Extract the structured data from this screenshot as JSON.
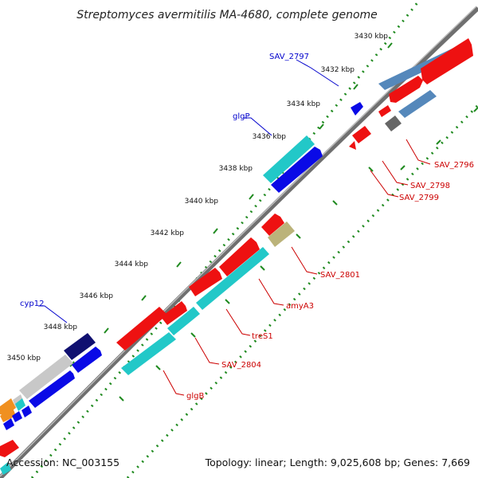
{
  "title": "Streptomyces avermitilis MA-4680, complete genome",
  "footer": {
    "accession": "Accession: NC_003155",
    "summary": "Topology: linear; Length: 9,025,608 bp; Genes: 7,669"
  },
  "colors": {
    "backbone": "#8c8c8c",
    "tick": "#1f8a1f",
    "blue_label": "#0000cc",
    "red_label": "#cc0000",
    "red_gene": "#ee1111",
    "cyan_gene": "#22c8c8",
    "blue_gene": "#0a0ae6",
    "navy_gene": "#101070",
    "steel_gene": "#5588bb",
    "gray_gene": "#777777",
    "tan_gene": "#bbb37a",
    "silver_gene": "#c8c8c8",
    "orange_gene": "#f09020"
  },
  "ticks": [
    "3430 kbp",
    "3432 kbp",
    "3434 kbp",
    "3436 kbp",
    "3438 kbp",
    "3440 kbp",
    "3442 kbp",
    "3444 kbp",
    "3446 kbp",
    "3448 kbp",
    "3450 kbp"
  ],
  "gene_labels": {
    "left": [
      "SAV_2797",
      "glgP",
      "cyp12"
    ],
    "right": [
      "SAV_2796",
      "SAV_2798",
      "SAV_2799",
      "SAV_2801",
      "amyA3",
      "treS1",
      "SAV_2804",
      "glgB"
    ]
  }
}
